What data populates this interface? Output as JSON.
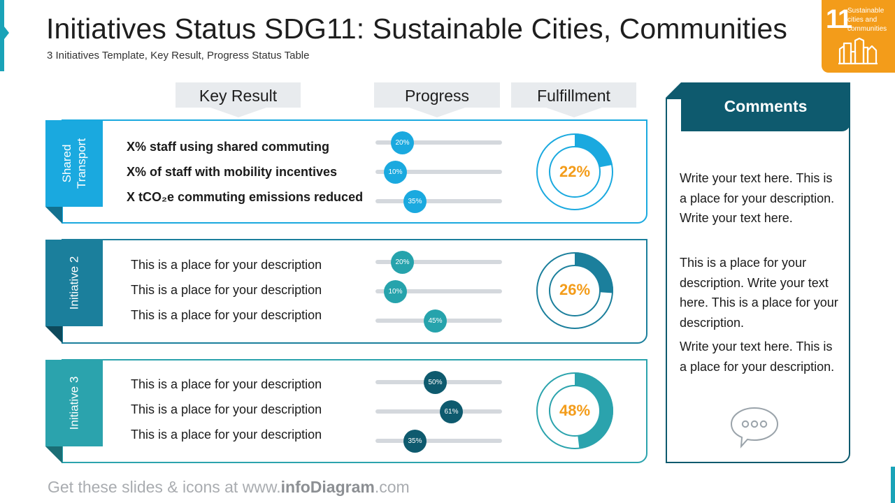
{
  "header": {
    "title": "Initiatives Status SDG11: Sustainable Cities, Communities",
    "subtitle": "3 Initiatives Template, Key Result, Progress Status Table"
  },
  "sdg_badge": {
    "number": "11",
    "text_lines": [
      "Sustainable",
      "cities and",
      "communities"
    ],
    "icon": "city-buildings-icon",
    "color": "#f39c1a"
  },
  "columns": {
    "key_result": "Key Result",
    "progress": "Progress",
    "fulfillment": "Fulfillment"
  },
  "initiatives": [
    {
      "name": "Shared Transport",
      "name_lines": [
        "Shared",
        "Transport"
      ],
      "color": "#1aa9df",
      "results": [
        {
          "text": "X% staff using shared commuting",
          "progress": 20,
          "progress_label": "20%"
        },
        {
          "text": "X% of staff with mobility incentives",
          "progress": 10,
          "progress_label": "10%"
        },
        {
          "text": "X tCO₂e commuting emissions reduced",
          "progress": 35,
          "progress_label": "35%"
        }
      ],
      "fulfillment": 22,
      "fulfillment_label": "22%"
    },
    {
      "name": "Initiative 2",
      "name_lines": [
        "Initiative 2"
      ],
      "color": "#1b7f9c",
      "knob_color": "#26a3ac",
      "results": [
        {
          "text": "This is a place for your description",
          "progress": 20,
          "progress_label": "20%"
        },
        {
          "text": "This is a place for your description",
          "progress": 10,
          "progress_label": "10%"
        },
        {
          "text": "This is a place for your description",
          "progress": 45,
          "progress_label": "45%"
        }
      ],
      "fulfillment": 26,
      "fulfillment_label": "26%"
    },
    {
      "name": "Initiative 3",
      "name_lines": [
        "Initiative 3"
      ],
      "color": "#2ba3ad",
      "knob_color": "#0e5a6e",
      "results": [
        {
          "text": "This is a place for your description",
          "progress": 50,
          "progress_label": "50%"
        },
        {
          "text": "This is a place for your description",
          "progress": 61,
          "progress_label": "61%"
        },
        {
          "text": "This is a place for your description",
          "progress": 35,
          "progress_label": "35%"
        }
      ],
      "fulfillment": 48,
      "fulfillment_label": "48%"
    }
  ],
  "comments": {
    "title": "Comments",
    "paragraphs": [
      "Write your text here. This is a place for your description. Write your text here.",
      "This is a place for your description. Write your text here. This is a place for your description.",
      "Write your text here. This is a place for your description."
    ],
    "icon": "chat-bubble-icon"
  },
  "footer": {
    "prefix": "Get these slides & icons at www.",
    "brand": "infoDiagram",
    "suffix": ".com"
  },
  "colors": {
    "accent": "#1aa3b8",
    "dark_teal": "#0e5a6e",
    "orange": "#f39c1a",
    "track": "#d4d8dd"
  }
}
